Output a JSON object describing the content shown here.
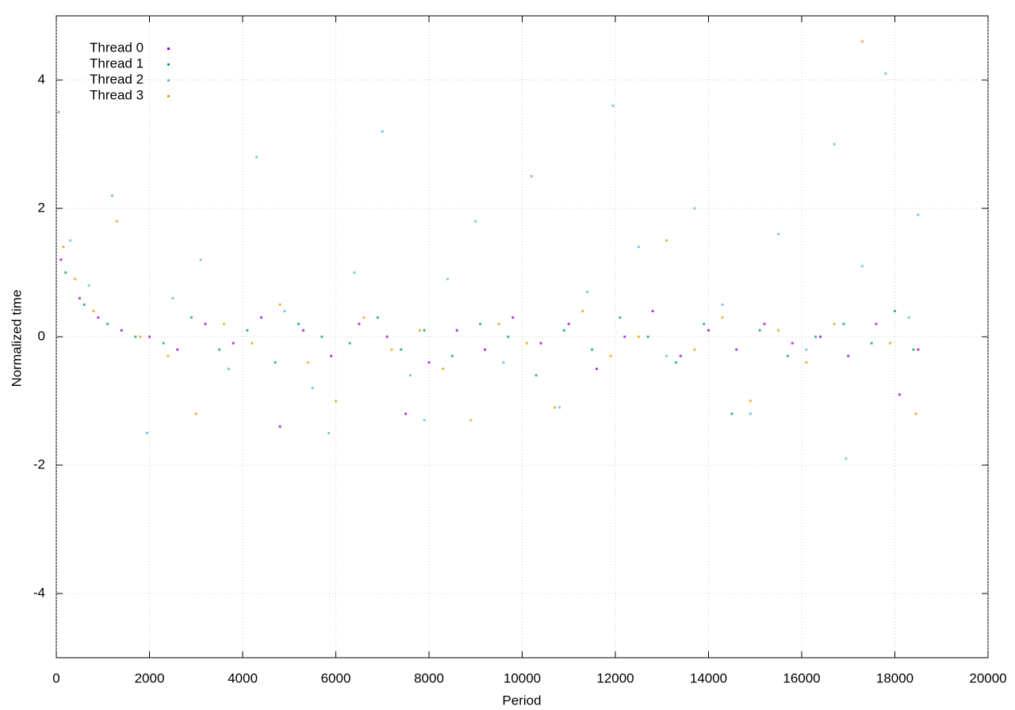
{
  "chart_data": {
    "type": "scatter",
    "xlabel": "Period",
    "ylabel": "Normalized time",
    "xlim": [
      0,
      20000
    ],
    "ylim": [
      -5,
      5
    ],
    "xticks": [
      0,
      2000,
      4000,
      6000,
      8000,
      10000,
      12000,
      14000,
      16000,
      18000,
      20000
    ],
    "yticks": [
      -4,
      -2,
      0,
      2,
      4
    ],
    "grid": true,
    "legend": "top-left",
    "series": [
      {
        "name": "Thread 0",
        "color": "#9400d3",
        "x": [
          100,
          500,
          900,
          1400,
          2000,
          2600,
          3200,
          3800,
          4400,
          4800,
          5300,
          5900,
          6500,
          7100,
          7500,
          8000,
          8600,
          9200,
          9800,
          10400,
          11000,
          11600,
          12200,
          12800,
          13400,
          14000,
          14600,
          15200,
          15800,
          16400,
          17000,
          17600,
          18100,
          18500
        ],
        "values": [
          1.2,
          0.6,
          0.3,
          0.1,
          0.0,
          -0.2,
          0.2,
          -0.1,
          0.3,
          -1.4,
          0.1,
          -0.3,
          0.2,
          0.0,
          -1.2,
          -0.4,
          0.1,
          -0.2,
          0.3,
          -0.1,
          0.2,
          -0.5,
          0.0,
          0.4,
          -0.3,
          0.1,
          -0.2,
          0.2,
          -0.1,
          0.0,
          -0.3,
          0.2,
          -0.9,
          -0.2
        ]
      },
      {
        "name": "Thread 1",
        "color": "#009e73",
        "x": [
          200,
          600,
          1100,
          1700,
          2300,
          2900,
          3500,
          4100,
          4700,
          5200,
          5700,
          6300,
          6900,
          7400,
          7900,
          8500,
          9100,
          9700,
          10300,
          10900,
          11500,
          12100,
          12700,
          13300,
          13900,
          14500,
          15100,
          15700,
          16300,
          16900,
          17500,
          18000,
          18400
        ],
        "values": [
          1.0,
          0.5,
          0.2,
          0.0,
          -0.1,
          0.3,
          -0.2,
          0.1,
          -0.4,
          0.2,
          0.0,
          -0.1,
          0.3,
          -0.2,
          0.1,
          -0.3,
          0.2,
          0.0,
          -0.6,
          0.1,
          -0.2,
          0.3,
          0.0,
          -0.4,
          0.2,
          -1.2,
          0.1,
          -0.3,
          0.0,
          0.2,
          -0.1,
          0.4,
          -0.2
        ]
      },
      {
        "name": "Thread 2",
        "color": "#56b4e9",
        "x": [
          50,
          300,
          700,
          1200,
          1950,
          2500,
          3100,
          3700,
          4300,
          4900,
          5500,
          5850,
          6400,
          7000,
          7600,
          7900,
          8400,
          9000,
          9600,
          10200,
          10800,
          11400,
          11950,
          12500,
          13100,
          13700,
          14300,
          14900,
          15500,
          16100,
          16700,
          16950,
          17300,
          17800,
          18300,
          18500
        ],
        "values": [
          3.5,
          1.5,
          0.8,
          2.2,
          -1.5,
          0.6,
          1.2,
          -0.5,
          2.8,
          0.4,
          -0.8,
          -1.5,
          1.0,
          3.2,
          -0.6,
          -1.3,
          0.9,
          1.8,
          -0.4,
          2.5,
          -1.1,
          0.7,
          3.6,
          1.4,
          -0.3,
          2.0,
          0.5,
          -1.2,
          1.6,
          -0.2,
          3.0,
          -1.9,
          1.1,
          4.1,
          0.3,
          1.9
        ]
      },
      {
        "name": "Thread 3",
        "color": "#e69f00",
        "x": [
          150,
          400,
          800,
          1300,
          1800,
          2400,
          3000,
          3600,
          4200,
          4800,
          5400,
          6000,
          6600,
          7200,
          7800,
          8300,
          8900,
          9500,
          10100,
          10700,
          11300,
          11900,
          12500,
          13100,
          13700,
          14300,
          14900,
          15500,
          16100,
          16700,
          17300,
          17900,
          18450
        ],
        "values": [
          1.4,
          0.9,
          0.4,
          1.8,
          0.0,
          -0.3,
          -1.2,
          0.2,
          -0.1,
          0.5,
          -0.4,
          -1.0,
          0.3,
          -0.2,
          0.1,
          -0.5,
          -1.3,
          0.2,
          -0.1,
          -1.1,
          0.4,
          -0.3,
          0.0,
          1.5,
          -0.2,
          0.3,
          -1.0,
          0.1,
          -0.4,
          0.2,
          4.6,
          -0.1,
          -1.2
        ]
      }
    ]
  }
}
